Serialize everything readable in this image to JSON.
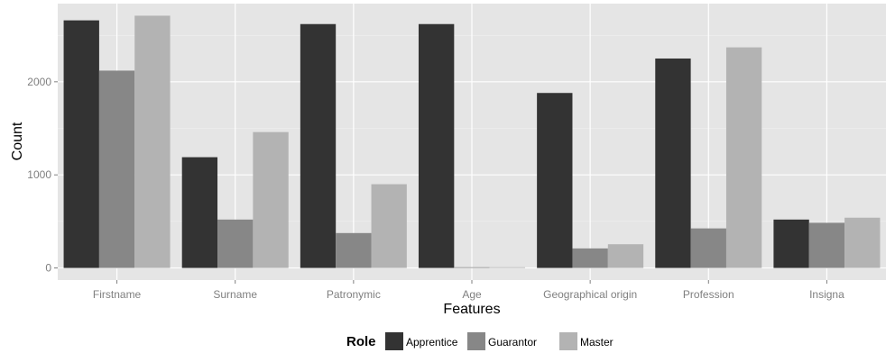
{
  "chart_data": {
    "type": "bar",
    "categories": [
      "Firstname",
      "Surname",
      "Patronymic",
      "Age",
      "Geographical origin",
      "Profession",
      "Insigna"
    ],
    "series": [
      {
        "name": "Apprentice",
        "color": "#333333",
        "values": [
          2660,
          1190,
          2620,
          2620,
          1880,
          2250,
          520
        ]
      },
      {
        "name": "Guarantor",
        "color": "#878787",
        "values": [
          2120,
          520,
          375,
          5,
          210,
          425,
          485
        ]
      },
      {
        "name": "Master",
        "color": "#b3b3b3",
        "values": [
          2710,
          1460,
          900,
          5,
          255,
          2370,
          540
        ]
      }
    ],
    "xlabel": "Features",
    "ylabel": "Count",
    "yticks": [
      0,
      1000,
      2000
    ],
    "ytick_labels": [
      "0",
      "1000",
      "2000"
    ],
    "ylim": [
      -130,
      2840
    ],
    "grid": true,
    "legend": {
      "title": "Role",
      "position": "bottom"
    },
    "panel_background": "#e5e5e5",
    "grid_color": "#ffffff"
  }
}
